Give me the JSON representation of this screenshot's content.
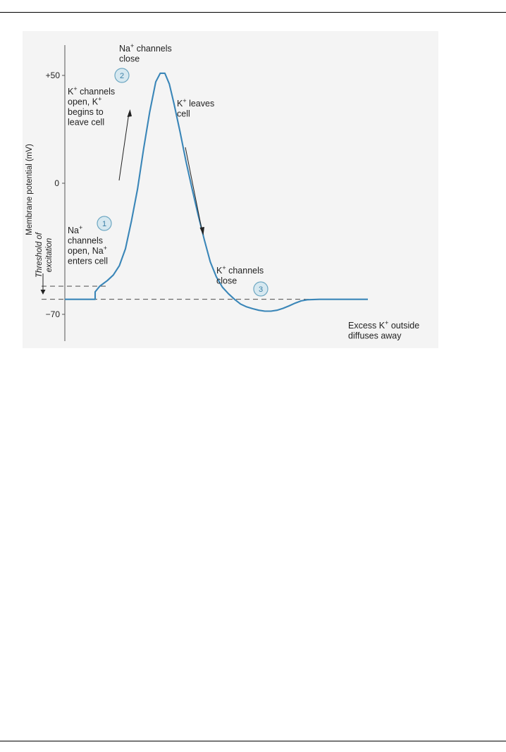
{
  "chart_data": {
    "type": "line",
    "ylabel": "Membrane potential (mV)",
    "yticks": [
      "+50",
      "0",
      "−70"
    ],
    "ytick_values": [
      50,
      0,
      -70
    ],
    "ylim": [
      -78,
      68
    ],
    "xlim": [
      0,
      100
    ],
    "series": [
      {
        "color": "#3a86b8",
        "points": [
          [
            0,
            -62
          ],
          [
            10,
            -62
          ],
          [
            10,
            -58
          ],
          [
            11.5,
            -55
          ],
          [
            14,
            -52
          ],
          [
            16,
            -49
          ],
          [
            18,
            -44
          ],
          [
            20,
            -35
          ],
          [
            22,
            -20
          ],
          [
            24,
            -3
          ],
          [
            26,
            16
          ],
          [
            28,
            33
          ],
          [
            30,
            47
          ],
          [
            31.5,
            51
          ],
          [
            33,
            51
          ],
          [
            34.5,
            46
          ],
          [
            36,
            37
          ],
          [
            38,
            24
          ],
          [
            40,
            10
          ],
          [
            42,
            -3
          ],
          [
            44,
            -17
          ],
          [
            46,
            -30
          ],
          [
            48,
            -42
          ],
          [
            50,
            -50
          ],
          [
            52,
            -55.5
          ],
          [
            54,
            -59
          ],
          [
            56,
            -62
          ],
          [
            58,
            -64.5
          ],
          [
            60,
            -66
          ],
          [
            62,
            -67
          ],
          [
            64,
            -67.8
          ],
          [
            66,
            -68.3
          ],
          [
            68,
            -68.3
          ],
          [
            70,
            -67.8
          ],
          [
            72,
            -66.8
          ],
          [
            74,
            -65.5
          ],
          [
            76,
            -64
          ],
          [
            78,
            -62.8
          ],
          [
            80,
            -62.2
          ],
          [
            84,
            -62
          ],
          [
            100,
            -62
          ]
        ]
      }
    ],
    "reference_lines": [
      {
        "kind": "resting",
        "y": -62
      },
      {
        "kind": "threshold",
        "y": -55
      }
    ],
    "threshold_label": [
      "Threshold of",
      "excitation"
    ],
    "annotations": [
      {
        "id": "na-open",
        "lines": [
          [
            "Na",
            "+",
            ""
          ],
          [
            "channels",
            "",
            ""
          ],
          [
            "open, Na",
            "+",
            ""
          ],
          [
            "enters cell",
            "",
            ""
          ]
        ]
      },
      {
        "id": "k-open",
        "lines": [
          [
            "K",
            "+",
            " channels"
          ],
          [
            "open, K",
            "+",
            ""
          ],
          [
            "begins to",
            "",
            ""
          ],
          [
            "leave cell",
            "",
            ""
          ]
        ]
      },
      {
        "id": "na-close",
        "lines": [
          [
            "Na",
            "+",
            " channels"
          ],
          [
            "close",
            "",
            ""
          ]
        ]
      },
      {
        "id": "k-leaves",
        "lines": [
          [
            "K",
            "+",
            " leaves"
          ],
          [
            "cell",
            "",
            ""
          ]
        ]
      },
      {
        "id": "k-close",
        "lines": [
          [
            "K",
            "+",
            " channels"
          ],
          [
            "close",
            "",
            ""
          ]
        ]
      },
      {
        "id": "excess",
        "lines": [
          [
            "Excess K",
            "+",
            " outside"
          ],
          [
            "diffuses away",
            "",
            ""
          ]
        ]
      }
    ],
    "badges": [
      "1",
      "2",
      "3"
    ]
  }
}
